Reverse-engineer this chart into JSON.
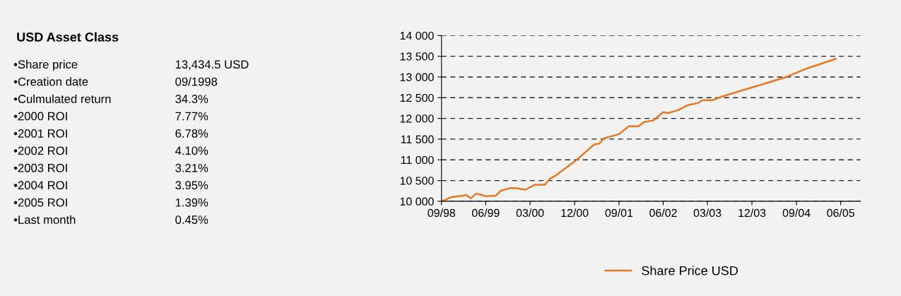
{
  "chart_data": [
    {
      "type": "other",
      "title": "USD Asset Class",
      "annotations": [
        "•Share price",
        "13,434.5 USD",
        "•Creation date",
        "09/1998",
        "•Culmulated return",
        "34.3%",
        "•2000 ROI",
        "7.77%",
        "•2001 ROI",
        "6.78%",
        "•2002 ROI",
        "4.10%",
        "•2003 ROI",
        "3.21%",
        "•2004 ROI",
        "3.95%",
        "•2005 ROI",
        "1.39%",
        "•Last month",
        "0.45%"
      ]
    },
    {
      "type": "line",
      "x": [
        "1998-09",
        "1998-11",
        "1999-01",
        "1999-02",
        "1999-03",
        "1999-04",
        "1999-05",
        "1999-06",
        "1999-07",
        "1999-08",
        "1999-09",
        "1999-11",
        "1999-12",
        "2000-02",
        "2000-04",
        "2000-06",
        "2000-07",
        "2000-08",
        "2000-12",
        "2001-04",
        "2001-05",
        "2001-06",
        "2001-09",
        "2001-11",
        "2002-01",
        "2002-02",
        "2002-04",
        "2002-06",
        "2002-07",
        "2002-09",
        "2002-11",
        "2003-01",
        "2003-02",
        "2003-04",
        "2003-06",
        "2004-07",
        "2004-11",
        "2005-05"
      ],
      "series": [
        {
          "name": "Share Price USD",
          "color": "#e87722",
          "values": [
            10000,
            10100,
            10130,
            10150,
            10070,
            10180,
            10160,
            10120,
            10130,
            10130,
            10250,
            10320,
            10320,
            10280,
            10400,
            10400,
            10540,
            10610,
            10960,
            11370,
            11390,
            11520,
            11620,
            11810,
            11810,
            11910,
            11950,
            12150,
            12130,
            12200,
            12320,
            12370,
            12440,
            12440,
            12530,
            13000,
            13200,
            13435
          ]
        }
      ],
      "xlim": [
        "1998-09",
        "2005-10"
      ],
      "xticks": [
        {
          "value": "1998-09",
          "label": "09/98"
        },
        {
          "value": "1999-06",
          "label": "06/99"
        },
        {
          "value": "2000-03",
          "label": "03/00"
        },
        {
          "value": "2000-12",
          "label": "12/00"
        },
        {
          "value": "2001-09",
          "label": "09/01"
        },
        {
          "value": "2002-06",
          "label": "06/02"
        },
        {
          "value": "2003-03",
          "label": "03/03"
        },
        {
          "value": "2003-12",
          "label": "12/03"
        },
        {
          "value": "2004-09",
          "label": "09/04"
        },
        {
          "value": "2005-06",
          "label": "06/05"
        }
      ],
      "ylim": [
        10000,
        14000
      ],
      "yticks": [
        {
          "value": 10000,
          "label": "10 000"
        },
        {
          "value": 10500,
          "label": "10 500"
        },
        {
          "value": 11000,
          "label": "11 000"
        },
        {
          "value": 11500,
          "label": "11 500"
        },
        {
          "value": 12000,
          "label": "12 000"
        },
        {
          "value": 12500,
          "label": "12 500"
        },
        {
          "value": 13000,
          "label": "13 000"
        },
        {
          "value": 13500,
          "label": "13 500"
        },
        {
          "value": 14000,
          "label": "14 000"
        }
      ],
      "grid": "y",
      "legend": "bottom",
      "line_style": "solid",
      "marker": "none"
    }
  ]
}
